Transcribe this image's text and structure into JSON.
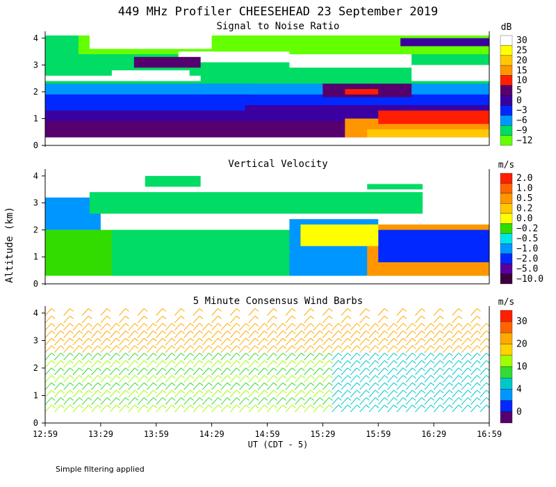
{
  "chart_data": [
    {
      "type": "heatmap",
      "title": "449 MHz Profiler CHEESEHEAD 23 September 2019",
      "subtitle": "Signal to Noise Ratio",
      "xlabel": "UT  (CDT - 5)",
      "ylabel": "Altitude (km)",
      "units": "dB",
      "y_ticks": [
        "0",
        "1",
        "2",
        "3",
        "4"
      ],
      "ylim": [
        0,
        4.1
      ],
      "colorbar": {
        "labels": [
          "30",
          "25",
          "20",
          "15",
          "10",
          "5",
          "0",
          "−3",
          "−6",
          "−9",
          "−12"
        ],
        "colors": [
          "#ffffff",
          "#ffff00",
          "#ffc800",
          "#ff9600",
          "#ff1e00",
          "#55006e",
          "#3c00a0",
          "#0028ff",
          "#0096ff",
          "#00dc64",
          "#64ff00"
        ]
      },
      "cells": [
        {
          "x0": 0,
          "x1": 4,
          "y0": 0.3,
          "y1": 4.1,
          "v": "purple"
        },
        {
          "x0": 0,
          "x1": 4,
          "y0": 0.3,
          "y1": 0.9,
          "v": "darkpurple"
        },
        {
          "x0": 0,
          "x1": 1.8,
          "y0": 0.9,
          "y1": 1.3,
          "v": "purple"
        },
        {
          "x0": 0,
          "x1": 1.8,
          "y0": 1.3,
          "y1": 1.9,
          "v": "blue"
        },
        {
          "x0": 1.8,
          "x1": 4,
          "y0": 1.5,
          "y1": 2.1,
          "v": "blue"
        },
        {
          "x0": 0,
          "x1": 4,
          "y0": 1.9,
          "y1": 2.3,
          "v": "cyan"
        },
        {
          "x0": 0,
          "x1": 4,
          "y0": 2.3,
          "y1": 4.1,
          "v": "green"
        },
        {
          "x0": 0.3,
          "x1": 4,
          "y0": 3.4,
          "y1": 4.1,
          "v": "lime"
        },
        {
          "x0": 0,
          "x1": 1.4,
          "y0": 2.4,
          "y1": 2.6,
          "v": "white"
        },
        {
          "x0": 0.6,
          "x1": 1.3,
          "y0": 2.5,
          "y1": 2.8,
          "v": "white"
        },
        {
          "x0": 1.2,
          "x1": 2.2,
          "y0": 3.1,
          "y1": 3.5,
          "v": "white"
        },
        {
          "x0": 2.2,
          "x1": 3.3,
          "y0": 2.9,
          "y1": 3.4,
          "v": "white"
        },
        {
          "x0": 3.3,
          "x1": 4,
          "y0": 2.4,
          "y1": 3.0,
          "v": "white"
        },
        {
          "x0": 0.4,
          "x1": 1.5,
          "y0": 3.6,
          "y1": 4.1,
          "v": "white"
        },
        {
          "x0": 3.2,
          "x1": 4,
          "y0": 3.7,
          "y1": 4.0,
          "v": "purple"
        },
        {
          "x0": 0.8,
          "x1": 1.4,
          "y0": 2.9,
          "y1": 3.3,
          "v": "darkpurple"
        },
        {
          "x0": 2.5,
          "x1": 3.3,
          "y0": 1.8,
          "y1": 2.3,
          "v": "darkpurple"
        },
        {
          "x0": 2.7,
          "x1": 3.0,
          "y0": 1.9,
          "y1": 2.1,
          "v": "red"
        },
        {
          "x0": 2.7,
          "x1": 4,
          "y0": 0.3,
          "y1": 1.0,
          "v": "orange"
        },
        {
          "x0": 2.9,
          "x1": 4,
          "y0": 0.3,
          "y1": 0.6,
          "v": "gold"
        },
        {
          "x0": 3.0,
          "x1": 4,
          "y0": 0.8,
          "y1": 1.3,
          "v": "red"
        }
      ]
    },
    {
      "type": "heatmap",
      "subtitle": "Vertical Velocity",
      "units": "m/s",
      "y_ticks": [
        "0",
        "1",
        "2",
        "3",
        "4"
      ],
      "ylim": [
        0,
        4.1
      ],
      "colorbar": {
        "labels": [
          "2.0",
          "1.0",
          "0.5",
          "0.2",
          "0.0",
          "−0.2",
          "−0.5",
          "−1.0",
          "−2.0",
          "−5.0",
          "−10.0"
        ],
        "colors": [
          "#ff1e00",
          "#ff6400",
          "#ff9600",
          "#ffc800",
          "#ffff00",
          "#32dc00",
          "#00e6e6",
          "#0096ff",
          "#0028ff",
          "#5a00a0",
          "#3c003c"
        ]
      },
      "cells": [
        {
          "x0": 0,
          "x1": 4,
          "y0": 0.3,
          "y1": 2.0,
          "v": "lightgreen"
        },
        {
          "x0": 0.6,
          "x1": 2.5,
          "y0": 0.3,
          "y1": 2.0,
          "v": "green"
        },
        {
          "x0": 2.2,
          "x1": 3.0,
          "y0": 0.3,
          "y1": 2.4,
          "v": "cyan"
        },
        {
          "x0": 2.9,
          "x1": 4,
          "y0": 0.3,
          "y1": 2.2,
          "v": "orange"
        },
        {
          "x0": 3.0,
          "x1": 4,
          "y0": 0.8,
          "y1": 2.0,
          "v": "blue"
        },
        {
          "x0": 0,
          "x1": 0.5,
          "y0": 2.0,
          "y1": 3.2,
          "v": "cyan"
        },
        {
          "x0": 0.4,
          "x1": 3.4,
          "y0": 2.6,
          "y1": 3.4,
          "v": "green"
        },
        {
          "x0": 0.9,
          "x1": 1.4,
          "y0": 3.6,
          "y1": 4.0,
          "v": "green"
        },
        {
          "x0": 2.3,
          "x1": 3.0,
          "y0": 1.4,
          "y1": 2.2,
          "v": "yellow"
        },
        {
          "x0": 2.9,
          "x1": 3.4,
          "y0": 3.5,
          "y1": 3.7,
          "v": "green"
        }
      ]
    },
    {
      "type": "wind_barbs",
      "subtitle": "5 Minute Consensus Wind Barbs",
      "units": "m/s",
      "y_ticks": [
        "0",
        "1",
        "2",
        "3",
        "4"
      ],
      "ylim": [
        0,
        4.1
      ],
      "x_ticks": [
        "12:59",
        "13:29",
        "13:59",
        "14:29",
        "14:59",
        "15:29",
        "15:59",
        "16:29",
        "16:59"
      ],
      "colorbar": {
        "labels": [
          "30",
          "20",
          "10",
          "4",
          "0"
        ],
        "colors": [
          "#ff1e00",
          "#ff6400",
          "#ffaa00",
          "#ffd200",
          "#a0ff00",
          "#32dc32",
          "#00c8c8",
          "#0096ff",
          "#0028ff",
          "#55006e"
        ]
      }
    }
  ],
  "footer": "Simple filtering applied"
}
